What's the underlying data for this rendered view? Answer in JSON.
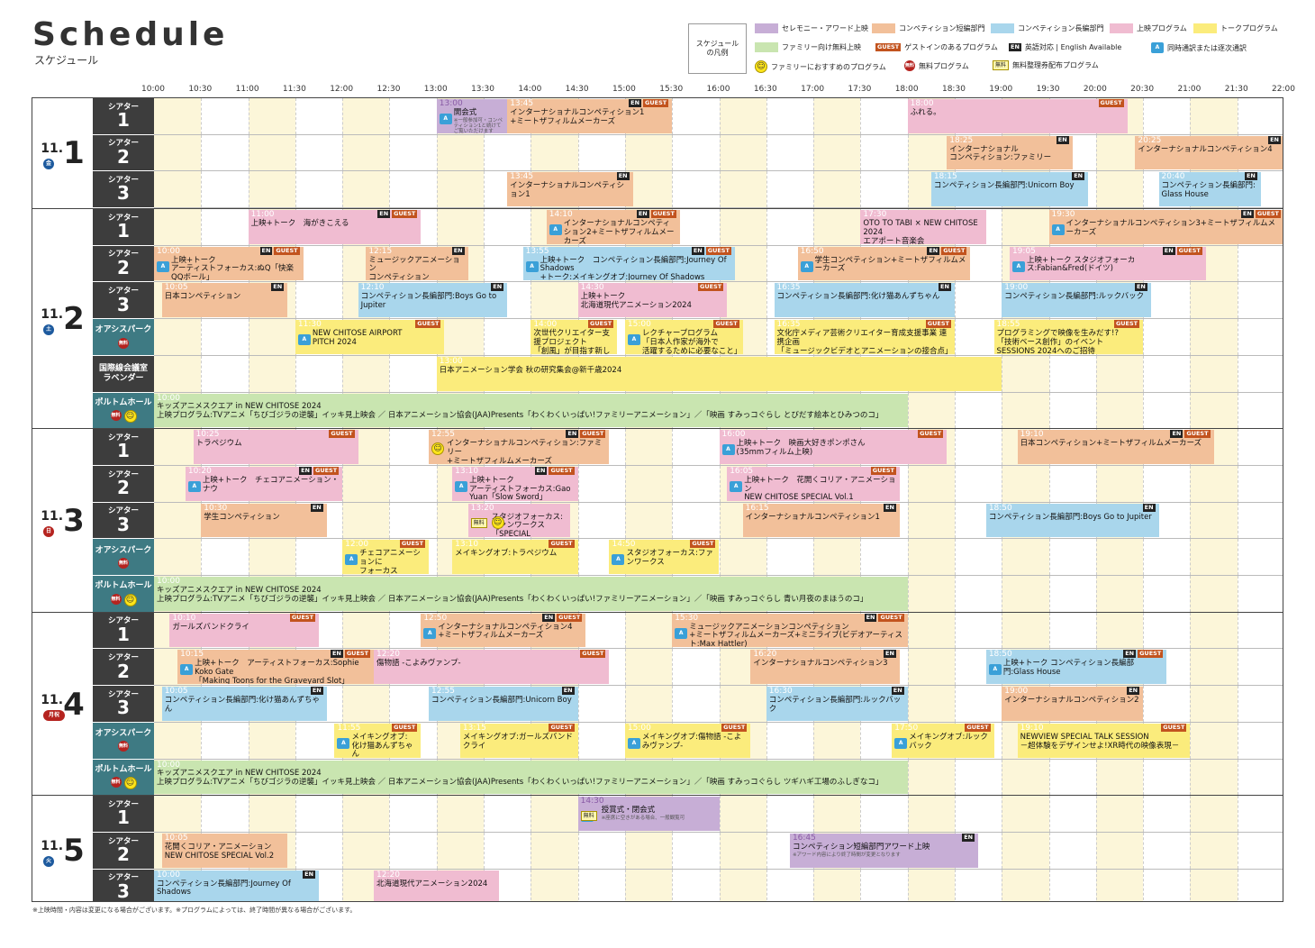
{
  "header": {
    "title": "Schedule",
    "subtitle": "スケジュール"
  },
  "legend": {
    "box": "スケジュール\nの凡例",
    "items": [
      {
        "label": "セレモニー・アワード上映",
        "color": "#c7aed6"
      },
      {
        "label": "コンペティション短編部門",
        "color": "#f2c09a"
      },
      {
        "label": "コンペティション長編部門",
        "color": "#a9d6ec"
      },
      {
        "label": "上映プログラム",
        "color": "#f0bcd1"
      },
      {
        "label": "トークプログラム",
        "color": "#fbec7c"
      },
      {
        "label": "ファミリー向け無料上映",
        "color": "#c9e5b0"
      }
    ],
    "guest": "ゲストインのあるプログラム",
    "en": "英語対応 | English Available",
    "dub": "同時通訳または逐次通訳",
    "smile": "ファミリーにおすすめのプログラム",
    "free": "無料プログラム",
    "seiri": "無料整理券配布プログラム",
    "guest_tag": "GUEST",
    "en_tag": "EN",
    "free_tag": "無料",
    "seiri_tag": "無料"
  },
  "times": [
    "10:00",
    "10:30",
    "11:00",
    "11:30",
    "12:00",
    "12:30",
    "13:00",
    "13:30",
    "14:00",
    "14:30",
    "15:00",
    "15:30",
    "16:00",
    "16:30",
    "17:00",
    "17:30",
    "18:00",
    "18:30",
    "19:00",
    "19:30",
    "20:00",
    "20:30",
    "21:00",
    "21:30",
    "22:00"
  ],
  "days": [
    {
      "month": "11.",
      "day": "1",
      "wd": "金",
      "lanes": [
        {
          "v": "シアター",
          "n": "1",
          "ev": [
            {
              "s": "13:00",
              "e": "13:45",
              "c": "ceremony",
              "t": "開会式",
              "note": "※一般参加可・コンペティション1と続けてご覧いただけます",
              "dub": true
            },
            {
              "s": "13:45",
              "e": "15:30",
              "c": "short",
              "t": "インターナショナルコンペティション1\n+ミートザフィルムメーカーズ",
              "en": true,
              "guest": true
            },
            {
              "s": "18:00",
              "e": "20:20",
              "c": "screen",
              "t": "ふれる。",
              "guest": true
            }
          ]
        },
        {
          "v": "シアター",
          "n": "2",
          "ev": [
            {
              "s": "18:25",
              "e": "19:45",
              "c": "short",
              "t": "インターナショナル\nコンペティション:ファミリー",
              "en": true
            },
            {
              "s": "20:25",
              "e": "22:00",
              "c": "short",
              "t": "インターナショナルコンペティション4",
              "en": true
            }
          ]
        },
        {
          "v": "シアター",
          "n": "3",
          "ev": [
            {
              "s": "13:45",
              "e": "15:05",
              "c": "short",
              "t": "インターナショナルコンペティション1",
              "en": true
            },
            {
              "s": "18:15",
              "e": "19:55",
              "c": "long",
              "t": "コンペティション長編部門:Unicorn Boy",
              "en": true
            },
            {
              "s": "20:40",
              "e": "21:45",
              "c": "long",
              "t": "コンペティション長編部門:\nGlass House",
              "en": true
            }
          ]
        }
      ]
    },
    {
      "month": "11.",
      "day": "2",
      "wd": "土",
      "lanes": [
        {
          "v": "シアター",
          "n": "1",
          "ev": [
            {
              "s": "11:00",
              "e": "12:50",
              "c": "screen",
              "t": "上映+トーク　海がきこえる",
              "en": true,
              "guest": true
            },
            {
              "s": "14:10",
              "e": "15:35",
              "c": "short",
              "t": "インターナショナルコンペティション2+ミートザフィルムメーカーズ",
              "en": true,
              "guest": true,
              "dub": true
            },
            {
              "s": "17:30",
              "e": "18:50",
              "c": "screen",
              "t": "OTO TO TABI × NEW CHITOSE 2024\nエアポート音楽会"
            },
            {
              "s": "19:30",
              "e": "22:00",
              "c": "short",
              "t": "インターナショナルコンペティション3+ミートザフィルムメーカーズ",
              "en": true,
              "guest": true,
              "dub": true
            }
          ]
        },
        {
          "v": "シアター",
          "n": "2",
          "ev": [
            {
              "s": "10:00",
              "e": "11:35",
              "c": "short",
              "t": "上映+トーク\nアーティストフォーカス:ぬQ「快楽QQボール」",
              "en": true,
              "guest": true,
              "dub": true
            },
            {
              "s": "12:15",
              "e": "13:20",
              "c": "short",
              "t": "ミュージックアニメーション\nコンペティション",
              "en": true
            },
            {
              "s": "13:55",
              "e": "16:10",
              "c": "long",
              "t": "上映+トーク　コンペティション長編部門:Journey Of Shadows\n+トーク:メイキングオブ:Journey Of Shadows",
              "en": true,
              "guest": true,
              "dub": true
            },
            {
              "s": "16:50",
              "e": "18:40",
              "c": "short",
              "t": "学生コンペティション+ミートザフィルムメーカーズ",
              "en": true,
              "guest": true,
              "dub": true
            },
            {
              "s": "19:05",
              "e": "21:10",
              "c": "screen",
              "t": "上映+トーク スタジオフォーカス:Fabian&Fred(ドイツ)",
              "en": true,
              "guest": true,
              "dub": true
            }
          ]
        },
        {
          "v": "シアター",
          "n": "3",
          "ev": [
            {
              "s": "10:05",
              "e": "11:25",
              "c": "short",
              "t": "日本コンペティション",
              "en": true
            },
            {
              "s": "12:10",
              "e": "13:45",
              "c": "long",
              "t": "コンペティション長編部門:Boys Go to Jupiter",
              "en": true
            },
            {
              "s": "14:30",
              "e": "16:05",
              "c": "screen",
              "t": "上映+トーク\n北海道現代アニメーション2024",
              "guest": true
            },
            {
              "s": "16:35",
              "e": "18:30",
              "c": "long",
              "t": "コンペティション長編部門:化け猫あんずちゃん",
              "en": true
            },
            {
              "s": "19:00",
              "e": "20:35",
              "c": "long",
              "t": "コンペティション長編部門:ルックバック",
              "en": true
            }
          ]
        },
        {
          "v": "オアシスパーク",
          "n": "",
          "free": true,
          "teal": true,
          "ev": [
            {
              "s": "11:30",
              "e": "13:05",
              "c": "talk",
              "t": "NEW CHITOSE AIRPORT\nPITCH 2024",
              "guest": true,
              "dub": true
            },
            {
              "s": "14:00",
              "e": "14:55",
              "c": "talk",
              "t": "次世代クリエイター支援プロジェクト\n「創風」が目指す新しい才能の発掘",
              "guest": true
            },
            {
              "s": "15:00",
              "e": "16:15",
              "c": "talk",
              "t": "レクチャープログラム\n「日本人作家が海外で\n活躍するために必要なこと」",
              "guest": true,
              "dub": true
            },
            {
              "s": "16:35",
              "e": "18:30",
              "c": "talk",
              "t": "文化庁メディア芸術クリエイター育成支援事業 連携企画\n「ミュージックビデオとアニメーションの接合点」",
              "guest": true
            },
            {
              "s": "18:55",
              "e": "20:30",
              "c": "talk",
              "t": "プログラミングで映像を生みだす!?\n「技術ベース創作」のイベント SESSIONS 2024へのご招待",
              "guest": true
            }
          ]
        },
        {
          "v": "国際線会議室\nラベンダー",
          "n": "",
          "small": true,
          "ev": [
            {
              "s": "13:00",
              "e": "19:00",
              "c": "talk",
              "t": "日本アニメーション学会 秋の研究集会@新千歳2024"
            }
          ]
        },
        {
          "v": "ポルトムホール",
          "n": "",
          "free": true,
          "smile": true,
          "teal": true,
          "ev": [
            {
              "s": "10:00",
              "e": "18:00",
              "c": "family",
              "t": "キッズアニメスクエア in NEW CHITOSE 2024\n上映プログラム:TVアニメ「ちびゴジラの逆襲」イッキ見上映会 ／ 日本アニメーション協会(JAA)Presents「わくわくいっぱい!ファミリーアニメーション」／「映画 すみっコぐらし とびだす絵本とひみつのコ」"
            }
          ]
        }
      ]
    },
    {
      "month": "11.",
      "day": "3",
      "wd": "日",
      "lanes": [
        {
          "v": "シアター",
          "n": "1",
          "ev": [
            {
              "s": "10:25",
              "e": "12:10",
              "c": "screen",
              "t": "トラペジウム",
              "guest": true
            },
            {
              "s": "12:55",
              "e": "14:50",
              "c": "short",
              "t": "インターナショナルコンペティション:ファミリー\n+ミートザフィルムメーカーズ",
              "en": true,
              "guest": true,
              "smile": true
            },
            {
              "s": "16:00",
              "e": "18:25",
              "c": "screen",
              "t": "上映+トーク　映画大好きポンポさん\n(35mmフィルム上映)",
              "guest": true,
              "dub": true
            },
            {
              "s": "19:10",
              "e": "21:15",
              "c": "short",
              "t": "日本コンペティション+ミートザフィルムメーカーズ",
              "en": true,
              "guest": true
            }
          ]
        },
        {
          "v": "シアター",
          "n": "2",
          "ev": [
            {
              "s": "10:20",
              "e": "12:00",
              "c": "screen",
              "t": "上映+トーク　チェコアニメーション・ナウ",
              "en": true,
              "guest": true,
              "dub": true
            },
            {
              "s": "13:10",
              "e": "14:30",
              "c": "screen",
              "t": "上映+トーク\nアーティストフォーカス:Gao Yuan「Slow Sword」",
              "en": true,
              "guest": true,
              "dub": true
            },
            {
              "s": "16:05",
              "e": "17:55",
              "c": "screen",
              "t": "上映+トーク　花開くコリア・アニメーション\nNEW CHITOSE SPECIAL Vol.1",
              "guest": true,
              "dub": true
            }
          ]
        },
        {
          "v": "シアター",
          "n": "3",
          "ev": [
            {
              "s": "10:30",
              "e": "11:50",
              "c": "short",
              "t": "学生コンペティション",
              "en": true
            },
            {
              "s": "13:20",
              "e": "14:25",
              "c": "screen",
              "t": "スタジオフォーカス:ファンワークス\n「SPECIAL FEATURE: Kawaii Anime」",
              "seiri": true,
              "smile": true
            },
            {
              "s": "16:15",
              "e": "17:55",
              "c": "short",
              "t": "インターナショナルコンペティション1",
              "en": true
            },
            {
              "s": "18:50",
              "e": "20:40",
              "c": "long",
              "t": "コンペティション長編部門:Boys Go to Jupiter",
              "en": true
            }
          ]
        },
        {
          "v": "オアシスパーク",
          "n": "",
          "free": true,
          "teal": true,
          "ev": [
            {
              "s": "12:00",
              "e": "12:55",
              "c": "talk",
              "t": "チェコアニメーションに\nフォーカス",
              "guest": true,
              "dub": true
            },
            {
              "s": "13:10",
              "e": "14:30",
              "c": "talk",
              "t": "メイキングオブ:トラペジウム",
              "guest": true
            },
            {
              "s": "14:50",
              "e": "16:00",
              "c": "talk",
              "t": "スタジオフォーカス:ファンワークス",
              "guest": true,
              "dub": true
            }
          ]
        },
        {
          "v": "ポルトムホール",
          "n": "",
          "free": true,
          "smile": true,
          "teal": true,
          "ev": [
            {
              "s": "10:00",
              "e": "18:00",
              "c": "family",
              "t": "キッズアニメスクエア in NEW CHITOSE 2024\n上映プログラム:TVアニメ「ちびゴジラの逆襲」イッキ見上映会 ／ 日本アニメーション協会(JAA)Presents「わくわくいっぱい!ファミリーアニメーション」／「映画 すみっコぐらし 青い月夜のまほうのコ」"
            }
          ]
        }
      ]
    },
    {
      "month": "11.",
      "day": "4",
      "wd": "月祝",
      "lanes": [
        {
          "v": "シアター",
          "n": "1",
          "ev": [
            {
              "s": "10:10",
              "e": "11:45",
              "c": "screen",
              "t": "ガールズバンドクライ",
              "guest": true
            },
            {
              "s": "12:50",
              "e": "14:35",
              "c": "short",
              "t": "インターナショナルコンペティション4\n+ミートザフィルムメーカーズ",
              "en": true,
              "guest": true,
              "dub": true
            },
            {
              "s": "15:30",
              "e": "18:00",
              "c": "short",
              "t": "ミュージックアニメーションコンペティション\n+ミートザフィルムメーカーズ+ミニライブ(ビデオアーティスト:Max Hattler)",
              "en": true,
              "guest": true,
              "dub": true
            }
          ]
        },
        {
          "v": "シアター",
          "n": "2",
          "ev": [
            {
              "s": "10:15",
              "e": "12:20",
              "c": "short",
              "t": "上映+トーク　アーティストフォーカス:Sophie Koko Gate\n「Making Toons for the Graveyard Slot」",
              "en": true,
              "guest": true,
              "dub": true
            },
            {
              "s": "12:20",
              "e": "14:50",
              "c": "screen",
              "t": "傷物語 -こよみヴァンプ-",
              "guest": true
            },
            {
              "s": "16:20",
              "e": "17:55",
              "c": "short",
              "t": "インターナショナルコンペティション3",
              "en": true
            },
            {
              "s": "18:50",
              "e": "20:45",
              "c": "long",
              "t": "上映+トーク コンペティション長編部門:Glass House",
              "en": true,
              "guest": true,
              "dub": true
            }
          ]
        },
        {
          "v": "シアター",
          "n": "3",
          "ev": [
            {
              "s": "10:05",
              "e": "11:50",
              "c": "long",
              "t": "コンペティション長編部門:化け猫あんずちゃん",
              "en": true
            },
            {
              "s": "12:55",
              "e": "14:30",
              "c": "long",
              "t": "コンペティション長編部門:Unicorn Boy",
              "en": true
            },
            {
              "s": "16:30",
              "e": "18:00",
              "c": "long",
              "t": "コンペティション長編部門:ルックバック",
              "en": true
            },
            {
              "s": "19:00",
              "e": "20:30",
              "c": "short",
              "t": "インターナショナルコンペティション2",
              "en": true
            }
          ]
        },
        {
          "v": "オアシスパーク",
          "n": "",
          "free": true,
          "teal": true,
          "ev": [
            {
              "s": "11:55",
              "e": "12:50",
              "c": "talk",
              "t": "メイキングオブ:\n化け猫あんずちゃん",
              "guest": true,
              "dub": true
            },
            {
              "s": "13:15",
              "e": "14:30",
              "c": "talk",
              "t": "メイキングオブ:ガールズバンドクライ",
              "guest": true
            },
            {
              "s": "15:00",
              "e": "16:20",
              "c": "talk",
              "t": "メイキングオブ:傷物語 -こよみヴァンプ-",
              "guest": true,
              "dub": true
            },
            {
              "s": "17:50",
              "e": "18:55",
              "c": "talk",
              "t": "メイキングオブ:ルックバック",
              "guest": true,
              "dub": true
            },
            {
              "s": "19:10",
              "e": "21:00",
              "c": "talk",
              "t": "NEWVIEW SPECIAL TALK SESSION\n－超体験をデザインせよ!XR時代の映像表現－",
              "guest": true
            }
          ]
        },
        {
          "v": "ポルトムホール",
          "n": "",
          "free": true,
          "smile": true,
          "teal": true,
          "ev": [
            {
              "s": "10:00",
              "e": "18:00",
              "c": "family",
              "t": "キッズアニメスクエア in NEW CHITOSE 2024\n上映プログラム:TVアニメ「ちびゴジラの逆襲」イッキ見上映会 ／ 日本アニメーション協会(JAA)Presents「わくわくいっぱい!ファミリーアニメーション」／「映画 すみっコぐらし ツギハギ工場のふしぎなコ」"
            }
          ]
        }
      ]
    },
    {
      "month": "11.",
      "day": "5",
      "wd": "火",
      "lanes": [
        {
          "v": "シアター",
          "n": "1",
          "ev": [
            {
              "s": "14:30",
              "e": "16:00",
              "c": "ceremony",
              "t": "授賞式・閉会式",
              "note": "※座席に空きがある場合、一般観覧可",
              "seiri": true,
              "dub": true
            }
          ]
        },
        {
          "v": "シアター",
          "n": "2",
          "ev": [
            {
              "s": "10:05",
              "e": "11:25",
              "c": "short",
              "t": "花開くコリア・アニメーション\nNEW CHITOSE SPECIAL Vol.2"
            },
            {
              "s": "16:45",
              "e": "18:45",
              "c": "ceremony",
              "t": "コンペティション短編部門アワード上映",
              "note": "※アワード内容により終了時間が変更となります",
              "en": true
            }
          ]
        },
        {
          "v": "シアター",
          "n": "3",
          "ev": [
            {
              "s": "10:00",
              "e": "11:45",
              "c": "long",
              "t": "コンペティション長編部門:Journey Of Shadows",
              "en": true
            },
            {
              "s": "12:20",
              "e": "13:40",
              "c": "screen",
              "t": "北海道現代アニメーション2024"
            }
          ]
        }
      ]
    }
  ],
  "footnote": "※上映時間・内容は変更になる場合がございます。※プログラムによっては、終了時間が異なる場合がございます。"
}
